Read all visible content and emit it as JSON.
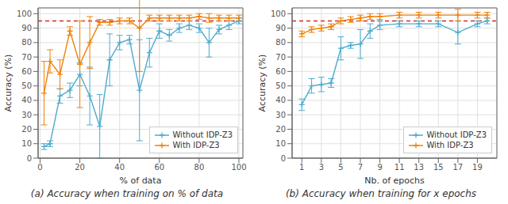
{
  "chart_data": [
    {
      "type": "line",
      "x": [
        2,
        5,
        10,
        15,
        20,
        25,
        30,
        35,
        40,
        45,
        50,
        55,
        60,
        65,
        70,
        75,
        80,
        85,
        90,
        95,
        100
      ],
      "series": [
        {
          "name": "Without IDP-Z3",
          "color": "#4dabce",
          "marker": "plus",
          "values": [
            8,
            10,
            43,
            47,
            58,
            43,
            22,
            68,
            80,
            82,
            47,
            73,
            88,
            85,
            90,
            92,
            90,
            80,
            89,
            92,
            95
          ],
          "errors": [
            2,
            2,
            5,
            5,
            8,
            20,
            22,
            18,
            5,
            3,
            35,
            10,
            5,
            4,
            3,
            3,
            3,
            10,
            3,
            3,
            2
          ]
        },
        {
          "name": "With IDP-Z3",
          "color": "#f0820a",
          "marker": "plus",
          "values": [
            45,
            67,
            58,
            88,
            65,
            80,
            94,
            94,
            95,
            95,
            90,
            97,
            97,
            97,
            97,
            97,
            98,
            97,
            97,
            97,
            97
          ],
          "errors": [
            22,
            8,
            10,
            3,
            30,
            18,
            2,
            2,
            2,
            2,
            30,
            2,
            2,
            2,
            2,
            2,
            2,
            3,
            2,
            2,
            2
          ]
        }
      ],
      "reference_line": {
        "value": 95,
        "color": "#d62728",
        "line_style": "dashed"
      },
      "xlabel": "% of data",
      "ylabel": "Accuracy (%)",
      "xlim": [
        -1,
        102
      ],
      "ylim": [
        0,
        104
      ],
      "xticks": [
        0,
        20,
        40,
        60,
        80,
        100
      ],
      "yticks": [
        0,
        10,
        20,
        30,
        40,
        50,
        60,
        70,
        80,
        90,
        100
      ],
      "caption": "(a) Accuracy when training on % of data",
      "grid": true,
      "legend": "lower right"
    },
    {
      "type": "line",
      "x": [
        1,
        2,
        3,
        4,
        5,
        6,
        7,
        8,
        9,
        11,
        13,
        15,
        17,
        19,
        20
      ],
      "series": [
        {
          "name": "Without IDP-Z3",
          "color": "#4dabce",
          "marker": "plus",
          "values": [
            37,
            50,
            51,
            52,
            76,
            78,
            79,
            88,
            92,
            93,
            93,
            93,
            87,
            93,
            95
          ],
          "errors": [
            4,
            5,
            5,
            3,
            8,
            2,
            10,
            5,
            3,
            2,
            2,
            2,
            8,
            2,
            2
          ]
        },
        {
          "name": "With IDP-Z3",
          "color": "#f0820a",
          "marker": "plus",
          "values": [
            86,
            89,
            90,
            91,
            95,
            96,
            97,
            98,
            98,
            99,
            99,
            99,
            99,
            99,
            99
          ],
          "errors": [
            2,
            2,
            2,
            2,
            2,
            2,
            2,
            2,
            2,
            2,
            2,
            2,
            4,
            2,
            2
          ]
        }
      ],
      "reference_line": {
        "value": 95,
        "color": "#d62728",
        "line_style": "dashed"
      },
      "xlabel": "Nb. of epochs",
      "ylabel": "Accuracy (%)",
      "xlim": [
        0,
        21
      ],
      "ylim": [
        0,
        104
      ],
      "xticks": [
        1,
        3,
        5,
        7,
        9,
        11,
        13,
        15,
        17,
        19
      ],
      "yticks": [
        0,
        10,
        20,
        30,
        40,
        50,
        60,
        70,
        80,
        90,
        100
      ],
      "caption": "(b) Accuracy when training for x epochs",
      "grid": true,
      "legend": "lower right"
    }
  ]
}
